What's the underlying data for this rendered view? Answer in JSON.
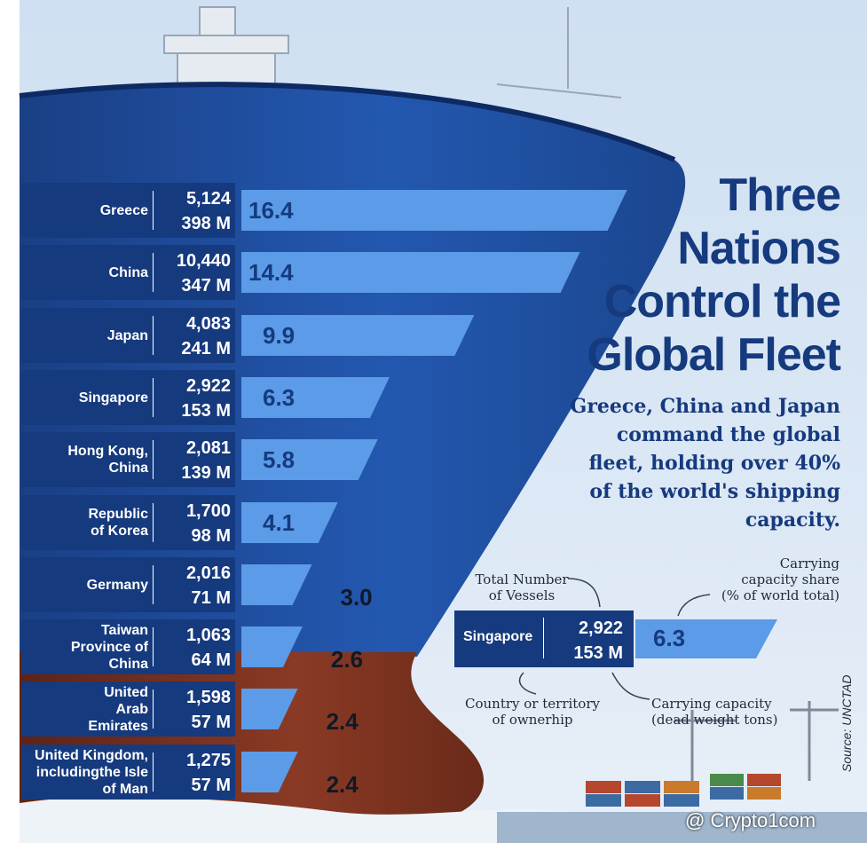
{
  "title": "Three Nations Control the Global Fleet",
  "subtitle": "Greece, China and Japan command the global fleet, holding over 40% of the world's shipping capacity.",
  "source": "Source: UNCTAD",
  "watermark": "@ Crypto1com",
  "colors": {
    "panel": "#163a7e",
    "bar": "#5b9be8",
    "title": "#163a7e",
    "hull_blue": "#1f4ea0",
    "hull_red": "#7a2f1f"
  },
  "chart_data": {
    "type": "bar",
    "categories": [
      "Greece",
      "China",
      "Japan",
      "Singapore",
      "Hong Kong, China",
      "Republic of Korea",
      "Germany",
      "Taiwan Province of China",
      "United Arab Emirates",
      "United Kingdom, includingthe Isle of Man"
    ],
    "category_lines": [
      [
        "Greece"
      ],
      [
        "China"
      ],
      [
        "Japan"
      ],
      [
        "Singapore"
      ],
      [
        "Hong Kong,",
        "China"
      ],
      [
        "Republic",
        "of Korea"
      ],
      [
        "Germany"
      ],
      [
        "Taiwan",
        "Province of",
        "China"
      ],
      [
        "United",
        "Arab",
        "Emirates"
      ],
      [
        "United Kingdom,",
        "includingthe Isle",
        "of Man"
      ]
    ],
    "vessels": [
      "5,124",
      "10,440",
      "4,083",
      "2,922",
      "2,081",
      "1,700",
      "2,016",
      "1,063",
      "1,598",
      "1,275"
    ],
    "capacity": [
      "398 M",
      "347 M",
      "241 M",
      "153 M",
      "139 M",
      "98 M",
      "71 M",
      "64 M",
      "57 M",
      "57 M"
    ],
    "values": [
      16.4,
      14.4,
      9.9,
      6.3,
      5.8,
      4.1,
      3.0,
      2.6,
      2.4,
      2.4
    ],
    "value_labels": [
      "16.4",
      "14.4",
      "9.9",
      "6.3",
      "5.8",
      "4.1",
      "3.0",
      "2.6",
      "2.4",
      "2.4"
    ]
  },
  "legend": {
    "total_vessels": "Total Number of Vessels",
    "total_vessels_lines": [
      "Total Number",
      "of Vessels"
    ],
    "share": "Carrying capacity share (% of world total)",
    "share_lines": [
      "Carrying",
      "capacity share",
      "(% of world total)"
    ],
    "country": "Country or territory of ownerhip",
    "country_lines": [
      "Country or territory",
      "of ownerhip"
    ],
    "dwt": "Carrying capacity (dead weight tons)",
    "dwt_lines": [
      "Carrying capacity",
      "(dead weight tons)"
    ],
    "example_name": "Singapore",
    "example_vessels": "2,922",
    "example_capacity": "153 M",
    "example_share": "6.3"
  }
}
